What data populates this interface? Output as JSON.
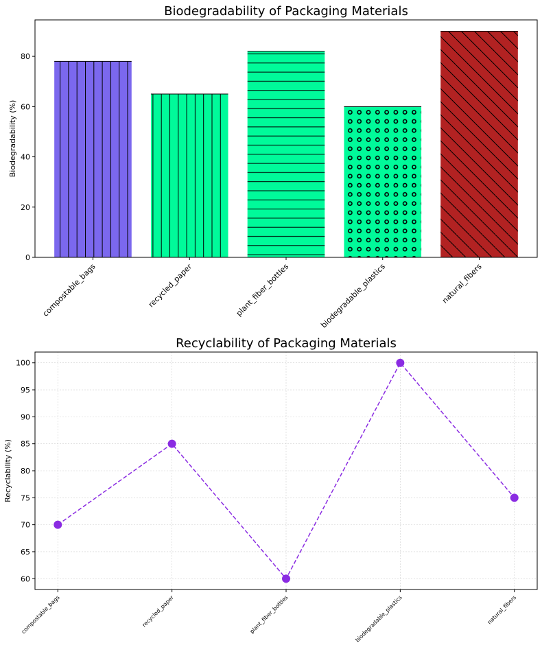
{
  "chart_data": [
    {
      "type": "bar",
      "title": "Biodegradability of Packaging Materials",
      "xlabel": "",
      "ylabel": "Biodegradability (%)",
      "categories": [
        "compostable_bags",
        "recycled_paper",
        "plant_fiber_bottles",
        "biodegradable_plastics",
        "natural_fibers"
      ],
      "values": [
        78,
        65,
        82,
        60,
        90
      ],
      "colors": [
        "#7b68ee",
        "#00fa9a",
        "#00fa9a",
        "#00fa9a",
        "#b22222"
      ],
      "hatches": [
        "vertical",
        "vertical",
        "horizontal",
        "circles",
        "diagonal"
      ],
      "ylim": [
        0,
        94.5
      ],
      "yticks": [
        0,
        20,
        40,
        60,
        80
      ],
      "grid": false
    },
    {
      "type": "line",
      "title": "Recyclability of Packaging Materials",
      "xlabel": "",
      "ylabel": "Recyclability (%)",
      "categories": [
        "compostable_bags",
        "recycled_paper",
        "plant_fiber_bottles",
        "biodegradable_plastics",
        "natural_fibers"
      ],
      "values": [
        70,
        85,
        60,
        100,
        75
      ],
      "color": "#8a2be2",
      "line_style": "dashed",
      "marker": "circle",
      "ylim": [
        58,
        102
      ],
      "yticks": [
        60,
        65,
        70,
        75,
        80,
        85,
        90,
        95,
        100
      ],
      "grid": true
    }
  ]
}
